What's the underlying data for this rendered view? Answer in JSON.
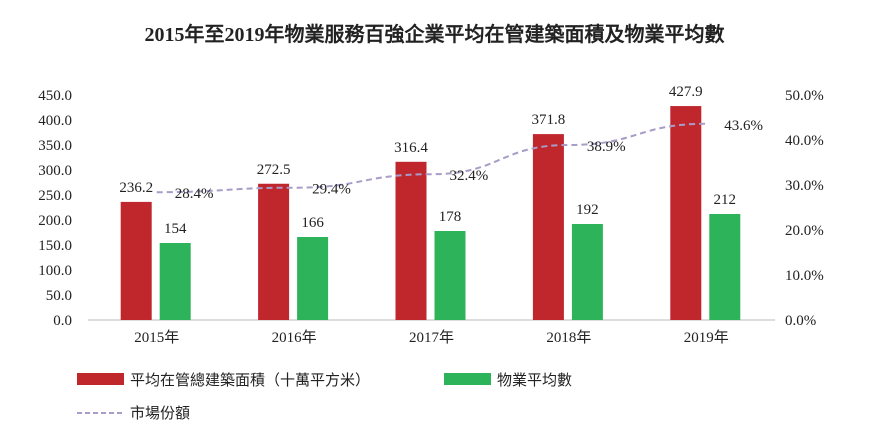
{
  "chart_data": {
    "type": "bar",
    "title": "2015年至2019年物業服務百強企業平均在管建築面積及物業平均數",
    "categories": [
      "2015年",
      "2016年",
      "2017年",
      "2018年",
      "2019年"
    ],
    "series": [
      {
        "name": "平均在管總建築面積（十萬平方米）",
        "type": "bar",
        "axis": "left",
        "color": "#C0272D",
        "values": [
          236.2,
          272.5,
          316.4,
          371.8,
          427.9
        ],
        "labels": [
          "236.2",
          "272.5",
          "316.4",
          "371.8",
          "427.9"
        ]
      },
      {
        "name": "物業平均數",
        "type": "bar",
        "axis": "left",
        "color": "#2DB45B",
        "values": [
          154,
          166,
          178,
          192,
          212
        ],
        "labels": [
          "154",
          "166",
          "178",
          "192",
          "212"
        ]
      },
      {
        "name": "市場份額",
        "type": "line",
        "axis": "right",
        "color": "#A89CC8",
        "values": [
          28.4,
          29.4,
          32.4,
          38.9,
          43.6
        ],
        "labels": [
          "28.4%",
          "29.4%",
          "32.4%",
          "38.9%",
          "43.6%"
        ]
      }
    ],
    "ylim": [
      0,
      450
    ],
    "y2lim": [
      0,
      50
    ],
    "yticks": [
      "0.0",
      "50.0",
      "100.0",
      "150.0",
      "200.0",
      "250.0",
      "300.0",
      "350.0",
      "400.0",
      "450.0"
    ],
    "y2ticks": [
      "0.0%",
      "10.0%",
      "20.0%",
      "30.0%",
      "40.0%",
      "50.0%"
    ],
    "grid": false,
    "legend": "bottom-left"
  }
}
